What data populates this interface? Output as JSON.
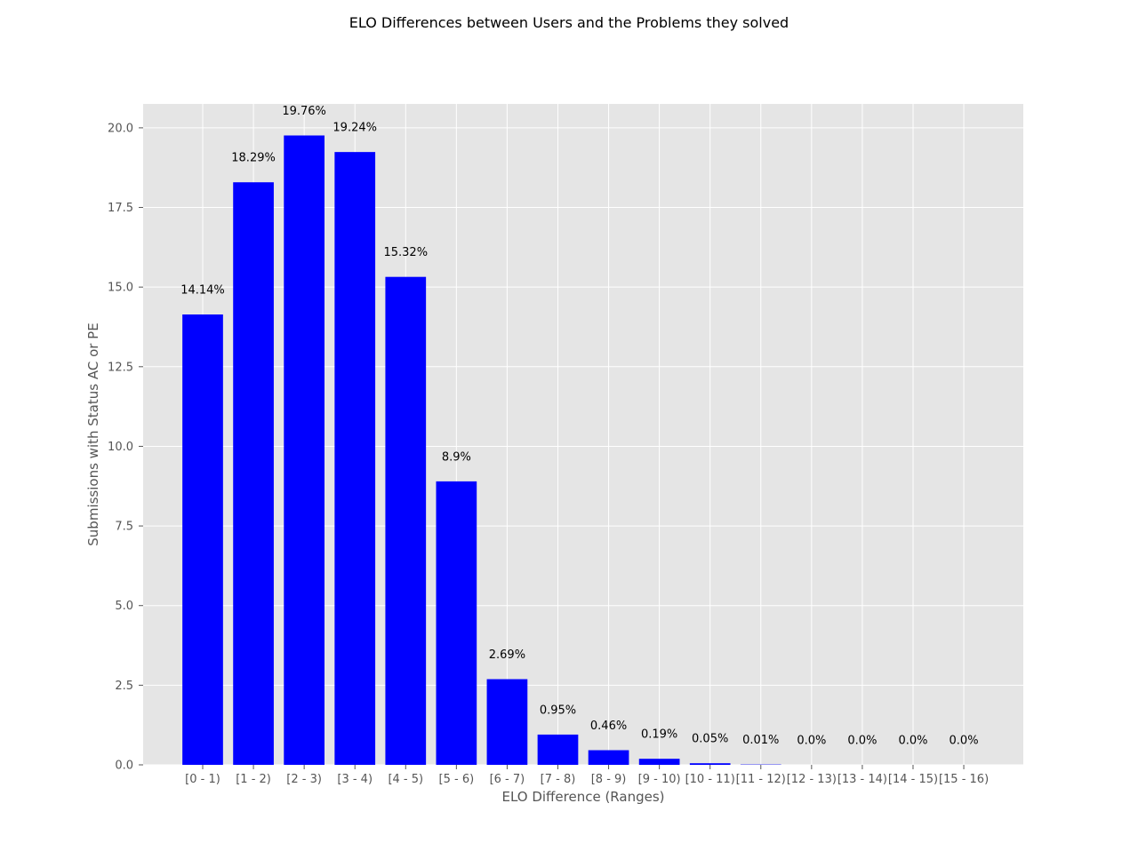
{
  "chart_data": {
    "type": "bar",
    "title": "ELO Differences between Users and the Problems they solved",
    "xlabel": "ELO Difference (Ranges)",
    "ylabel": "Submissions with Status AC or PE",
    "categories": [
      "[0 - 1)",
      "[1 - 2)",
      "[2 - 3)",
      "[3 - 4)",
      "[4 - 5)",
      "[5 - 6)",
      "[6 - 7)",
      "[7 - 8)",
      "[8 - 9)",
      "[9 - 10)",
      "[10 - 11)",
      "[11 - 12)",
      "[12 - 13)",
      "[13 - 14)",
      "[14 - 15)",
      "[15 - 16)"
    ],
    "values": [
      14.14,
      18.29,
      19.76,
      19.24,
      15.32,
      8.9,
      2.69,
      0.95,
      0.46,
      0.19,
      0.05,
      0.01,
      0.0,
      0.0,
      0.0,
      0.0
    ],
    "data_labels": [
      "14.14%",
      "18.29%",
      "19.76%",
      "19.24%",
      "15.32%",
      "8.9%",
      "2.69%",
      "0.95%",
      "0.46%",
      "0.19%",
      "0.05%",
      "0.01%",
      "0.0%",
      "0.0%",
      "0.0%",
      "0.0%"
    ],
    "ylim": [
      0,
      20.75
    ],
    "yticks": [
      0.0,
      2.5,
      5.0,
      7.5,
      10.0,
      12.5,
      15.0,
      17.5,
      20.0
    ],
    "ytick_labels": [
      "0.0",
      "2.5",
      "5.0",
      "7.5",
      "10.0",
      "12.5",
      "15.0",
      "17.5",
      "20.0"
    ],
    "grid": true,
    "bar_color": "#0000ff",
    "plot_background": "#e5e5e5",
    "grid_color": "#ffffff"
  }
}
